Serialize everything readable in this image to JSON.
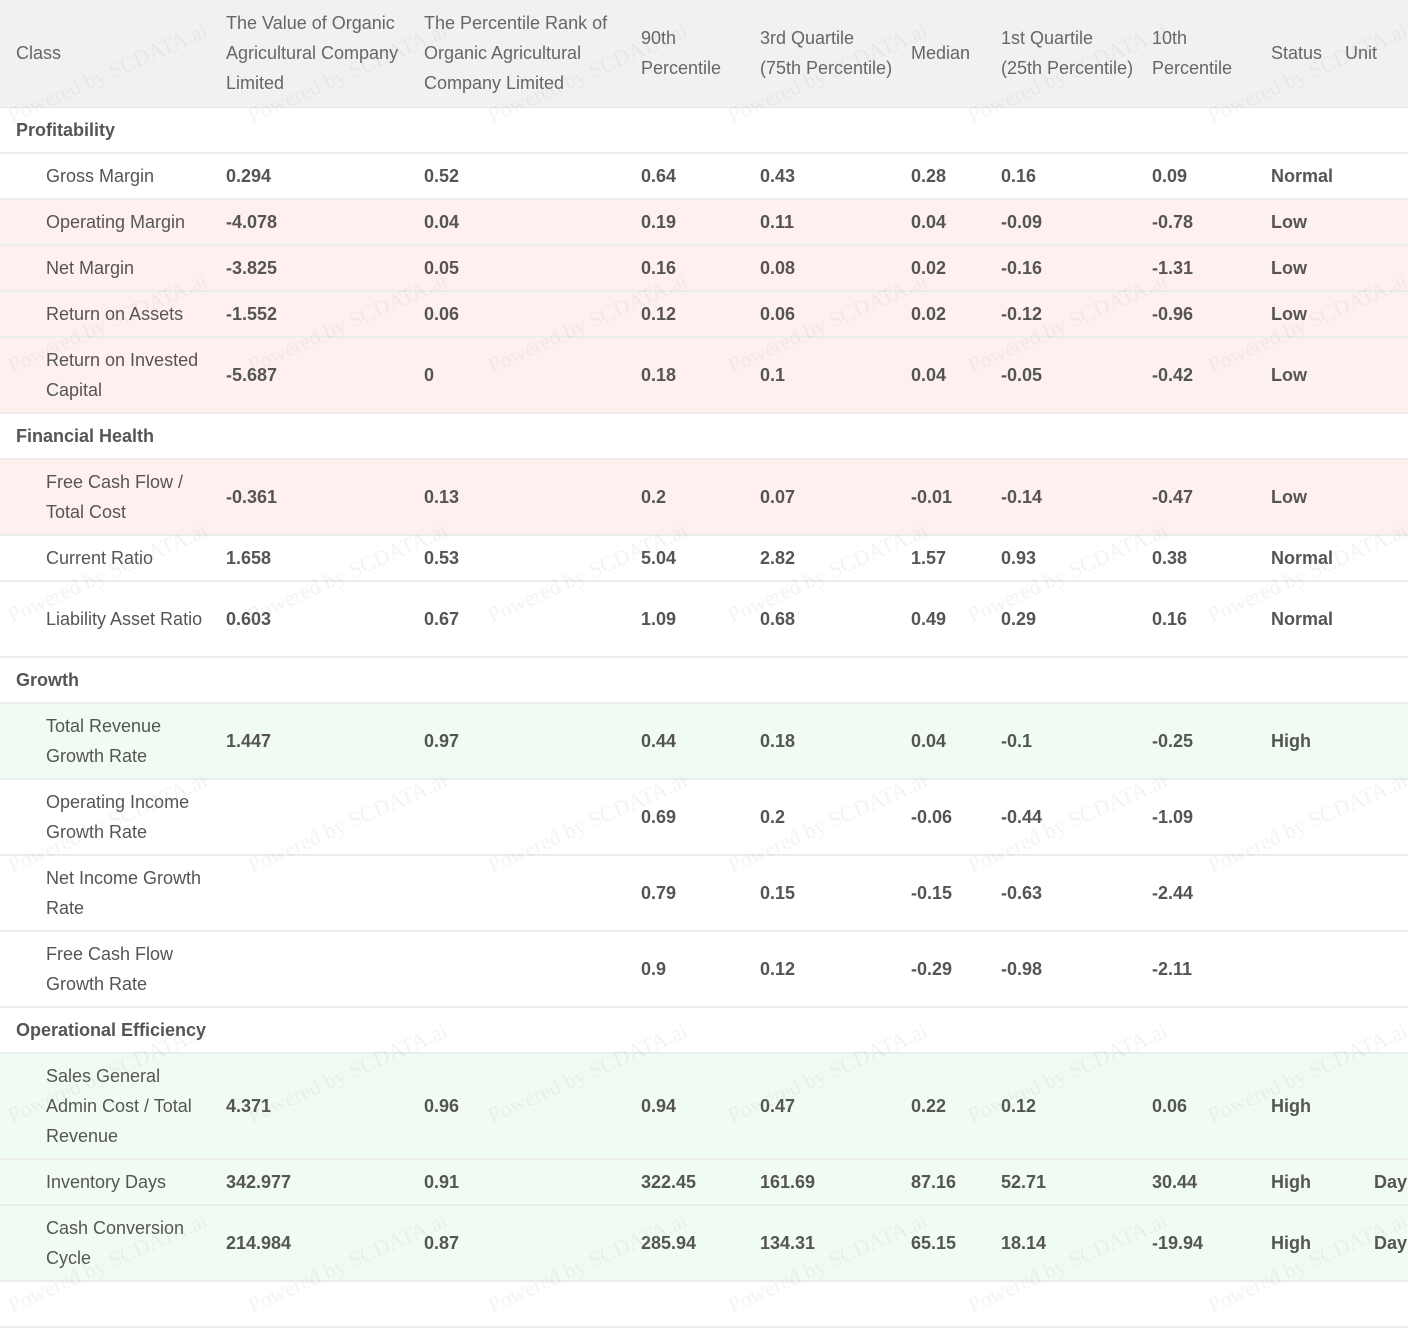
{
  "headers": [
    "Class",
    "The Value of Organic Agricultural Company Limited",
    "The Percentile Rank of Organic Agricultural Company Limited",
    "90th Percentile",
    "3rd Quartile (75th Percentile)",
    "Median",
    "1st Quartile (25th Percentile)",
    "10th Percentile",
    "Status",
    "Unit"
  ],
  "watermark": "Powered by SCDATA.ai",
  "sections": [
    {
      "name": "Profitability",
      "rows": [
        {
          "name": "Gross Margin",
          "value": "0.294",
          "rank": "0.52",
          "p90": "0.64",
          "q3": "0.43",
          "median": "0.28",
          "q1": "0.16",
          "p10": "0.09",
          "status": "Normal",
          "unit": ""
        },
        {
          "name": "Operating Margin",
          "value": "-4.078",
          "rank": "0.04",
          "p90": "0.19",
          "q3": "0.11",
          "median": "0.04",
          "q1": "-0.09",
          "p10": "-0.78",
          "status": "Low",
          "unit": ""
        },
        {
          "name": "Net Margin",
          "value": "-3.825",
          "rank": "0.05",
          "p90": "0.16",
          "q3": "0.08",
          "median": "0.02",
          "q1": "-0.16",
          "p10": "-1.31",
          "status": "Low",
          "unit": ""
        },
        {
          "name": "Return on Assets",
          "value": "-1.552",
          "rank": "0.06",
          "p90": "0.12",
          "q3": "0.06",
          "median": "0.02",
          "q1": "-0.12",
          "p10": "-0.96",
          "status": "Low",
          "unit": ""
        },
        {
          "name": "Return on Invested Capital",
          "value": "-5.687",
          "rank": "0",
          "p90": "0.18",
          "q3": "0.1",
          "median": "0.04",
          "q1": "-0.05",
          "p10": "-0.42",
          "status": "Low",
          "unit": ""
        }
      ]
    },
    {
      "name": "Financial Health",
      "rows": [
        {
          "name": "Free Cash Flow / Total Cost",
          "value": "-0.361",
          "rank": "0.13",
          "p90": "0.2",
          "q3": "0.07",
          "median": "-0.01",
          "q1": "-0.14",
          "p10": "-0.47",
          "status": "Low",
          "unit": ""
        },
        {
          "name": "Current Ratio",
          "value": "1.658",
          "rank": "0.53",
          "p90": "5.04",
          "q3": "2.82",
          "median": "1.57",
          "q1": "0.93",
          "p10": "0.38",
          "status": "Normal",
          "unit": ""
        },
        {
          "name": "Liability Asset Ratio",
          "value": "0.603",
          "rank": "0.67",
          "p90": "1.09",
          "q3": "0.68",
          "median": "0.49",
          "q1": "0.29",
          "p10": "0.16",
          "status": "Normal",
          "unit": ""
        }
      ]
    },
    {
      "name": "Growth",
      "rows": [
        {
          "name": "Total Revenue Growth Rate",
          "value": "1.447",
          "rank": "0.97",
          "p90": "0.44",
          "q3": "0.18",
          "median": "0.04",
          "q1": "-0.1",
          "p10": "-0.25",
          "status": "High",
          "unit": ""
        },
        {
          "name": "Operating Income Growth Rate",
          "value": "",
          "rank": "",
          "p90": "0.69",
          "q3": "0.2",
          "median": "-0.06",
          "q1": "-0.44",
          "p10": "-1.09",
          "status": "",
          "unit": ""
        },
        {
          "name": "Net Income Growth Rate",
          "value": "",
          "rank": "",
          "p90": "0.79",
          "q3": "0.15",
          "median": "-0.15",
          "q1": "-0.63",
          "p10": "-2.44",
          "status": "",
          "unit": ""
        },
        {
          "name": "Free Cash Flow Growth Rate",
          "value": "",
          "rank": "",
          "p90": "0.9",
          "q3": "0.12",
          "median": "-0.29",
          "q1": "-0.98",
          "p10": "-2.11",
          "status": "",
          "unit": ""
        }
      ]
    },
    {
      "name": "Operational Efficiency",
      "rows": [
        {
          "name": "Sales General Admin Cost / Total Revenue",
          "value": "4.371",
          "rank": "0.96",
          "p90": "0.94",
          "q3": "0.47",
          "median": "0.22",
          "q1": "0.12",
          "p10": "0.06",
          "status": "High",
          "unit": ""
        },
        {
          "name": "Inventory Days",
          "value": "342.977",
          "rank": "0.91",
          "p90": "322.45",
          "q3": "161.69",
          "median": "87.16",
          "q1": "52.71",
          "p10": "30.44",
          "status": "High",
          "unit": "Day"
        },
        {
          "name": "Cash Conversion Cycle",
          "value": "214.984",
          "rank": "0.87",
          "p90": "285.94",
          "q3": "134.31",
          "median": "65.15",
          "q1": "18.14",
          "p10": "-19.94",
          "status": "High",
          "unit": "Day"
        }
      ]
    }
  ]
}
